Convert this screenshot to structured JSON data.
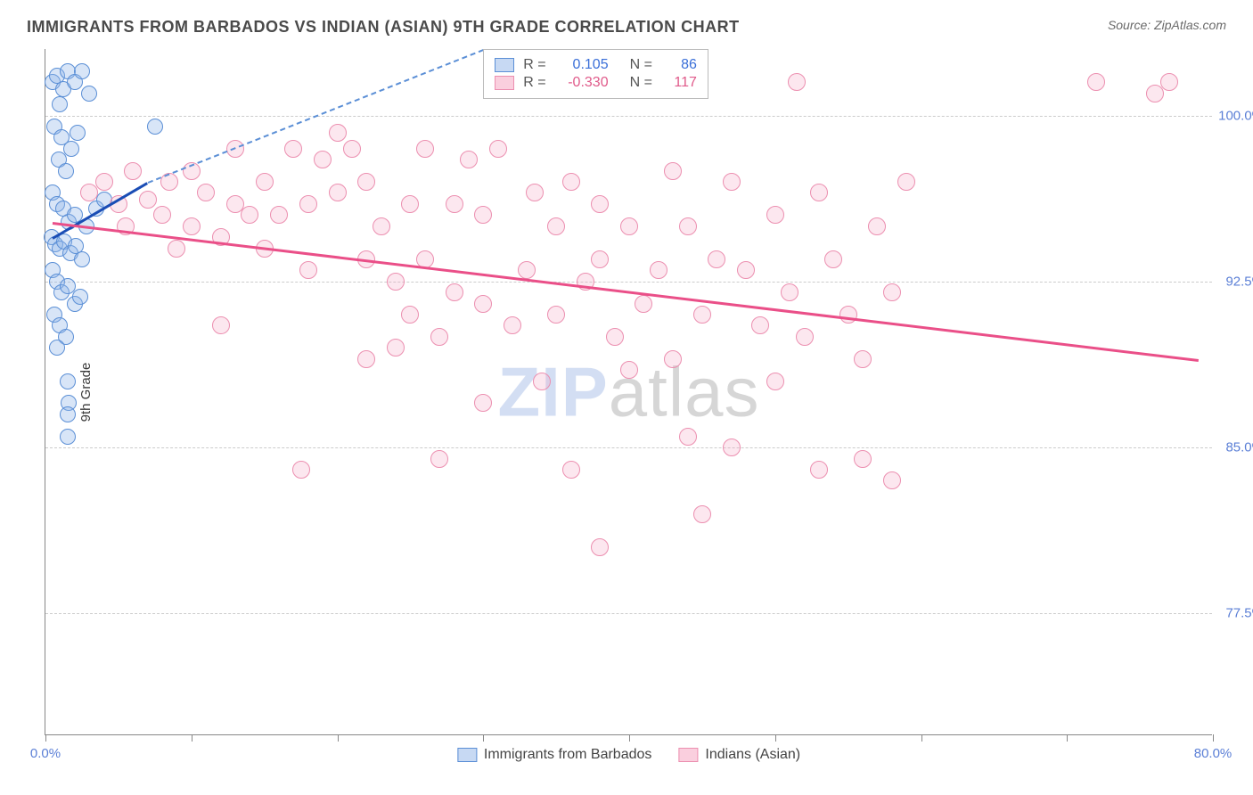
{
  "title": "IMMIGRANTS FROM BARBADOS VS INDIAN (ASIAN) 9TH GRADE CORRELATION CHART",
  "source": "Source: ZipAtlas.com",
  "ylabel": "9th Grade",
  "watermark_zip": "ZIP",
  "watermark_atlas": "atlas",
  "chart": {
    "type": "scatter",
    "xlim": [
      0,
      80
    ],
    "ylim": [
      72,
      103
    ],
    "background_color": "#ffffff",
    "grid_color": "#cccccc",
    "axis_color": "#888888",
    "ytick_values": [
      77.5,
      85.0,
      92.5,
      100.0
    ],
    "ytick_labels": [
      "77.5%",
      "85.0%",
      "92.5%",
      "100.0%"
    ],
    "xtick_values": [
      0,
      10,
      20,
      30,
      40,
      50,
      60,
      70,
      80
    ],
    "xtick_labels": {
      "0": "0.0%",
      "80": "80.0%"
    },
    "tick_label_color": "#5b7fd6",
    "tick_label_fontsize": 15
  },
  "series": [
    {
      "name": "Immigrants from Barbados",
      "marker_color_fill": "rgba(144,180,232,0.35)",
      "marker_color_border": "#5b8fd6",
      "marker_size": 18,
      "R": "0.105",
      "N": "86",
      "R_color": "#3a6fd8",
      "trend": {
        "x1": 0.5,
        "y1": 94.5,
        "x2": 7,
        "y2": 97.0,
        "color": "#1a4db5",
        "width": 3
      },
      "trend_ext": {
        "x1": 7,
        "y1": 97.0,
        "x2": 30,
        "y2": 103.0,
        "color": "#5b8fd6"
      },
      "points": [
        [
          0.5,
          101.5
        ],
        [
          0.8,
          101.8
        ],
        [
          1.2,
          101.2
        ],
        [
          1.5,
          102.0
        ],
        [
          2.0,
          101.5
        ],
        [
          2.5,
          102.0
        ],
        [
          3.0,
          101.0
        ],
        [
          1.0,
          100.5
        ],
        [
          0.6,
          99.5
        ],
        [
          1.1,
          99.0
        ],
        [
          1.8,
          98.5
        ],
        [
          2.2,
          99.2
        ],
        [
          0.9,
          98.0
        ],
        [
          1.4,
          97.5
        ],
        [
          7.5,
          99.5
        ],
        [
          0.5,
          96.5
        ],
        [
          0.8,
          96.0
        ],
        [
          1.2,
          95.8
        ],
        [
          1.6,
          95.2
        ],
        [
          2.0,
          95.5
        ],
        [
          2.8,
          95.0
        ],
        [
          3.5,
          95.8
        ],
        [
          4.0,
          96.2
        ],
        [
          0.4,
          94.5
        ],
        [
          0.7,
          94.2
        ],
        [
          1.0,
          94.0
        ],
        [
          1.3,
          94.3
        ],
        [
          1.7,
          93.8
        ],
        [
          2.1,
          94.1
        ],
        [
          2.5,
          93.5
        ],
        [
          0.5,
          93.0
        ],
        [
          0.8,
          92.5
        ],
        [
          1.1,
          92.0
        ],
        [
          1.5,
          92.3
        ],
        [
          2.0,
          91.5
        ],
        [
          2.4,
          91.8
        ],
        [
          0.6,
          91.0
        ],
        [
          1.0,
          90.5
        ],
        [
          1.4,
          90.0
        ],
        [
          0.8,
          89.5
        ],
        [
          1.5,
          88.0
        ],
        [
          1.6,
          87.0
        ],
        [
          1.5,
          86.5
        ],
        [
          1.5,
          85.5
        ]
      ]
    },
    {
      "name": "Indians (Asian)",
      "marker_color_fill": "rgba(245,160,190,0.25)",
      "marker_color_border": "#ec8fb0",
      "marker_size": 20,
      "R": "-0.330",
      "N": "117",
      "R_color": "#e05a8a",
      "trend": {
        "x1": 0.5,
        "y1": 95.2,
        "x2": 79,
        "y2": 89.0,
        "color": "#ea4f88",
        "width": 3
      },
      "points": [
        [
          3,
          96.5
        ],
        [
          4,
          97.0
        ],
        [
          5,
          96.0
        ],
        [
          5.5,
          95.0
        ],
        [
          6,
          97.5
        ],
        [
          7,
          96.2
        ],
        [
          8,
          95.5
        ],
        [
          8.5,
          97.0
        ],
        [
          9,
          94.0
        ],
        [
          10,
          97.5
        ],
        [
          10,
          95.0
        ],
        [
          11,
          96.5
        ],
        [
          12,
          94.5
        ],
        [
          12,
          90.5
        ],
        [
          13,
          96.0
        ],
        [
          13,
          98.5
        ],
        [
          14,
          95.5
        ],
        [
          15,
          94.0
        ],
        [
          15,
          97.0
        ],
        [
          16,
          95.5
        ],
        [
          17,
          98.5
        ],
        [
          17.5,
          84.0
        ],
        [
          18,
          96.0
        ],
        [
          18,
          93.0
        ],
        [
          19,
          98.0
        ],
        [
          20,
          99.2
        ],
        [
          20,
          96.5
        ],
        [
          21,
          98.5
        ],
        [
          22,
          97.0
        ],
        [
          22,
          93.5
        ],
        [
          22,
          89.0
        ],
        [
          23,
          95.0
        ],
        [
          24,
          92.5
        ],
        [
          24,
          89.5
        ],
        [
          25,
          96.0
        ],
        [
          25,
          91.0
        ],
        [
          26,
          98.5
        ],
        [
          26,
          93.5
        ],
        [
          27,
          90.0
        ],
        [
          27,
          84.5
        ],
        [
          28,
          96.0
        ],
        [
          28,
          92.0
        ],
        [
          29,
          98.0
        ],
        [
          30,
          95.5
        ],
        [
          30,
          91.5
        ],
        [
          30,
          87.0
        ],
        [
          31,
          98.5
        ],
        [
          32,
          90.5
        ],
        [
          33,
          93.0
        ],
        [
          33.5,
          96.5
        ],
        [
          34,
          88.0
        ],
        [
          35,
          95.0
        ],
        [
          35,
          91.0
        ],
        [
          36,
          97.0
        ],
        [
          36,
          84.0
        ],
        [
          37,
          92.5
        ],
        [
          38,
          80.5
        ],
        [
          38,
          96.0
        ],
        [
          38,
          93.5
        ],
        [
          39,
          90.0
        ],
        [
          40,
          95.0
        ],
        [
          40,
          88.5
        ],
        [
          41,
          91.5
        ],
        [
          42,
          93.0
        ],
        [
          43,
          97.5
        ],
        [
          43,
          89.0
        ],
        [
          44,
          95.0
        ],
        [
          44,
          85.5
        ],
        [
          45,
          82.0
        ],
        [
          45,
          91.0
        ],
        [
          46,
          93.5
        ],
        [
          47,
          97.0
        ],
        [
          47,
          85.0
        ],
        [
          48,
          93.0
        ],
        [
          49,
          90.5
        ],
        [
          50,
          95.5
        ],
        [
          50,
          88.0
        ],
        [
          51,
          92.0
        ],
        [
          51.5,
          101.5
        ],
        [
          52,
          90.0
        ],
        [
          53,
          96.5
        ],
        [
          53,
          84.0
        ],
        [
          54,
          93.5
        ],
        [
          55,
          91.0
        ],
        [
          56,
          84.5
        ],
        [
          56,
          89.0
        ],
        [
          57,
          95.0
        ],
        [
          58,
          92.0
        ],
        [
          58,
          83.5
        ],
        [
          59,
          97.0
        ],
        [
          72,
          101.5
        ],
        [
          76,
          101.0
        ],
        [
          77,
          101.5
        ]
      ]
    }
  ],
  "legend_top": {
    "R_label": "R =",
    "N_label": "N ="
  },
  "legend_bottom": [
    {
      "swatch": "blue",
      "label": "Immigrants from Barbados"
    },
    {
      "swatch": "pink",
      "label": "Indians (Asian)"
    }
  ]
}
